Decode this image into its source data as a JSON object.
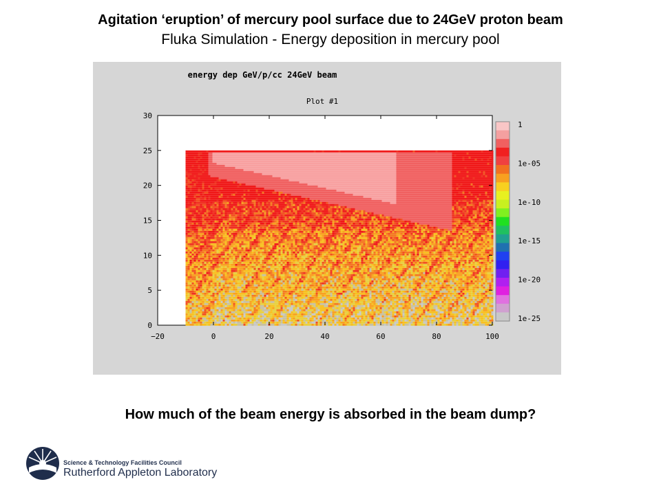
{
  "slide": {
    "title": "Agitation ‘eruption’ of mercury pool surface due to 24GeV proton beam",
    "subtitle": "Fluka Simulation - Energy deposition in mercury pool",
    "question": "How much of the beam energy is absorbed in the beam dump?"
  },
  "logo": {
    "line1": "Science & Technology Facilities Council",
    "line2": "Rutherford Appleton Laboratory"
  },
  "chart_data": {
    "type": "heatmap",
    "title": "energy dep GeV/p/cc 24GeV beam",
    "subtitle": "Plot #1",
    "xlim": [
      -20,
      100
    ],
    "ylim": [
      0,
      30
    ],
    "x_ticks": [
      "−20",
      "0",
      "20",
      "40",
      "60",
      "80",
      "100"
    ],
    "y_ticks": [
      "0",
      "5",
      "10",
      "15",
      "20",
      "25",
      "30"
    ],
    "data_region": {
      "x": [
        -10,
        100
      ],
      "y": [
        0,
        25
      ]
    },
    "colorbar": {
      "labels": [
        "1",
        "1e-05",
        "1e-10",
        "1e-15",
        "1e-20",
        "1e-25"
      ],
      "scale": "log",
      "colors": [
        "#f9c6c6",
        "#f4a0a0",
        "#f06060",
        "#f02020",
        "#f04040",
        "#f27020",
        "#f8a020",
        "#f8d020",
        "#e8f020",
        "#c8f020",
        "#80f020",
        "#20e020",
        "#20c060",
        "#20a090",
        "#2070b0",
        "#2040f0",
        "#3020f0",
        "#7020f0",
        "#b020f0",
        "#e020e0",
        "#e070e0",
        "#d0a0d0",
        "#c8c8c8"
      ]
    },
    "colors": {
      "panel_bg": "#d6d6d6",
      "plot_bg": "#ffffff",
      "low": "#c8c8c8",
      "high": "#f01818",
      "peak": "#f8a0a0"
    }
  }
}
